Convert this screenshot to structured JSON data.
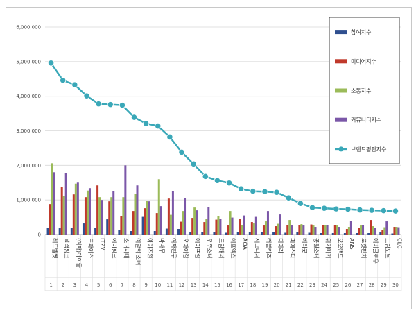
{
  "chart_data": {
    "type": "bar",
    "ylim": [
      0,
      6000000
    ],
    "yticks": [
      "0",
      "1,000,000",
      "2,000,000",
      "3,000,000",
      "4,000,000",
      "5,000,000",
      "6,000,000"
    ],
    "ytick_values": [
      0,
      1000000,
      2000000,
      3000000,
      4000000,
      5000000,
      6000000
    ],
    "grid": true,
    "legend_position": "top-right",
    "categories": [
      "레드벨벳",
      "블랙핑크",
      "(여자)아이들",
      "트와이스",
      "ITZY",
      "에이핑크",
      "소녀시대",
      "이달의 소녀",
      "아이즈원",
      "마마무",
      "여자친구",
      "오마이걸",
      "에이프릴",
      "우주소녀",
      "드림캐쳐",
      "에프엑스",
      "AOA",
      "시그니처",
      "러블리즈",
      "티아라",
      "피에스타",
      "베리굿",
      "공원소녀",
      "위키미키",
      "오오랜드",
      "ANS",
      "로켓펀치",
      "에버글로우",
      "드림노트",
      "CLC"
    ],
    "ranks": [
      "1",
      "2",
      "3",
      "4",
      "5",
      "6",
      "7",
      "8",
      "9",
      "10",
      "11",
      "12",
      "13",
      "14",
      "15",
      "16",
      "17",
      "18",
      "19",
      "20",
      "21",
      "22",
      "23",
      "24",
      "25",
      "26",
      "27",
      "28",
      "29",
      "30"
    ],
    "series": [
      {
        "name": "참여지수",
        "type": "bar",
        "color": "#2f4f8f",
        "values": [
          200000,
          180000,
          200000,
          320000,
          190000,
          440000,
          130000,
          100000,
          510000,
          100000,
          170000,
          160000,
          80000,
          60000,
          70000,
          50000,
          70000,
          60000,
          60000,
          60000,
          50000,
          70000,
          50000,
          40000,
          40000,
          40000,
          40000,
          40000,
          60000,
          30000
        ]
      },
      {
        "name": "미디어지수",
        "type": "bar",
        "color": "#c0392b",
        "values": [
          880000,
          1380000,
          1160000,
          1080000,
          1420000,
          960000,
          530000,
          680000,
          760000,
          620000,
          1040000,
          370000,
          480000,
          360000,
          430000,
          260000,
          450000,
          360000,
          260000,
          240000,
          280000,
          280000,
          290000,
          280000,
          280000,
          160000,
          200000,
          420000,
          140000,
          220000
        ]
      },
      {
        "name": "소통지수",
        "type": "bar",
        "color": "#9bbb59",
        "values": [
          2060000,
          1120000,
          1470000,
          1270000,
          1080000,
          1080000,
          1080000,
          1180000,
          980000,
          1600000,
          570000,
          680000,
          780000,
          450000,
          540000,
          680000,
          280000,
          320000,
          380000,
          310000,
          420000,
          300000,
          260000,
          280000,
          260000,
          220000,
          260000,
          240000,
          210000,
          220000
        ]
      },
      {
        "name": "커뮤니티지수",
        "type": "bar",
        "color": "#7b57a8",
        "values": [
          1800000,
          1770000,
          1500000,
          1340000,
          1000000,
          1260000,
          2000000,
          1420000,
          960000,
          820000,
          1250000,
          1060000,
          700000,
          800000,
          450000,
          490000,
          550000,
          510000,
          680000,
          580000,
          260000,
          260000,
          220000,
          280000,
          220000,
          390000,
          270000,
          200000,
          380000,
          210000
        ]
      },
      {
        "name": "브랜드평판지수",
        "type": "line",
        "color": "#3aa8b8",
        "values": [
          4960000,
          4460000,
          4330000,
          4010000,
          3780000,
          3760000,
          3740000,
          3390000,
          3210000,
          3140000,
          2820000,
          2380000,
          2040000,
          1680000,
          1560000,
          1490000,
          1320000,
          1250000,
          1240000,
          1220000,
          1060000,
          900000,
          780000,
          760000,
          740000,
          730000,
          710000,
          700000,
          690000,
          680000
        ]
      }
    ]
  }
}
